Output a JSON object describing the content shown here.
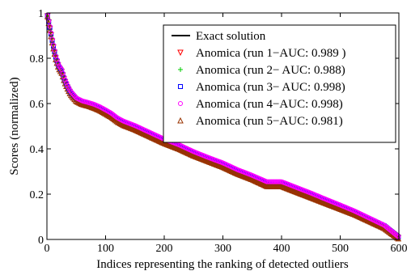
{
  "chart_data": {
    "type": "line",
    "title": "",
    "xlabel": "Indices representing the ranking of detected outliers",
    "ylabel": "Scores (normalized)",
    "xlim": [
      0,
      600
    ],
    "ylim": [
      0,
      1
    ],
    "xticks": [
      "0",
      "100",
      "200",
      "300",
      "400",
      "500",
      "600"
    ],
    "yticks": [
      "0",
      "0.2",
      "0.4",
      "0.6",
      "0.8",
      "1"
    ],
    "x": [
      0,
      5,
      10,
      15,
      20,
      25,
      30,
      35,
      40,
      50,
      60,
      70,
      80,
      90,
      100,
      110,
      120,
      130,
      150,
      175,
      200,
      225,
      250,
      275,
      300,
      325,
      350,
      375,
      400,
      425,
      450,
      475,
      500,
      525,
      550,
      575,
      600
    ],
    "legend_position": "top-right",
    "grid": false,
    "series": [
      {
        "name": "Exact solution",
        "style": "line",
        "color": "#000000",
        "values": [
          1.0,
          0.93,
          0.86,
          0.8,
          0.76,
          0.74,
          0.7,
          0.67,
          0.645,
          0.615,
          0.602,
          0.595,
          0.586,
          0.575,
          0.56,
          0.545,
          0.525,
          0.51,
          0.49,
          0.46,
          0.43,
          0.405,
          0.375,
          0.35,
          0.325,
          0.295,
          0.27,
          0.24,
          0.24,
          0.215,
          0.19,
          0.165,
          0.14,
          0.115,
          0.085,
          0.055,
          0.005
        ]
      },
      {
        "name": "Anomica (run 1−AUC: 0.989 )",
        "style": "triangle-down",
        "color": "#ff0000",
        "values": [
          1.0,
          0.93,
          0.86,
          0.8,
          0.76,
          0.74,
          0.7,
          0.67,
          0.645,
          0.615,
          0.602,
          0.595,
          0.586,
          0.575,
          0.56,
          0.545,
          0.525,
          0.51,
          0.49,
          0.46,
          0.43,
          0.405,
          0.375,
          0.35,
          0.325,
          0.295,
          0.27,
          0.24,
          0.24,
          0.215,
          0.19,
          0.165,
          0.14,
          0.115,
          0.085,
          0.055,
          0.005
        ]
      },
      {
        "name": "Anomica (run 2− AUC: 0.988)",
        "style": "plus",
        "color": "#00cc00",
        "values": [
          1.0,
          0.93,
          0.86,
          0.8,
          0.76,
          0.74,
          0.7,
          0.67,
          0.645,
          0.615,
          0.602,
          0.595,
          0.586,
          0.575,
          0.56,
          0.545,
          0.525,
          0.51,
          0.49,
          0.46,
          0.43,
          0.405,
          0.375,
          0.35,
          0.325,
          0.295,
          0.27,
          0.24,
          0.24,
          0.215,
          0.19,
          0.165,
          0.14,
          0.115,
          0.085,
          0.055,
          0.005
        ]
      },
      {
        "name": "Anomica (run 3− AUC: 0.998)",
        "style": "square",
        "color": "#0000ff",
        "values": [
          1.0,
          0.935,
          0.865,
          0.805,
          0.765,
          0.745,
          0.705,
          0.675,
          0.65,
          0.62,
          0.607,
          0.6,
          0.591,
          0.58,
          0.565,
          0.55,
          0.53,
          0.515,
          0.495,
          0.465,
          0.435,
          0.41,
          0.38,
          0.355,
          0.33,
          0.3,
          0.275,
          0.247,
          0.247,
          0.222,
          0.197,
          0.172,
          0.147,
          0.12,
          0.09,
          0.06,
          0.008
        ]
      },
      {
        "name": "Anomica (run 4−AUC: 0.998)",
        "style": "circle",
        "color": "#ff00ff",
        "values": [
          1.0,
          0.94,
          0.87,
          0.81,
          0.77,
          0.75,
          0.71,
          0.68,
          0.655,
          0.625,
          0.612,
          0.605,
          0.597,
          0.586,
          0.572,
          0.557,
          0.537,
          0.523,
          0.503,
          0.473,
          0.443,
          0.418,
          0.388,
          0.362,
          0.338,
          0.308,
          0.283,
          0.255,
          0.255,
          0.23,
          0.205,
          0.178,
          0.152,
          0.125,
          0.094,
          0.063,
          0.01
        ]
      },
      {
        "name": "Anomica (run 5−AUC: 0.981)",
        "style": "triangle-up",
        "color": "#993300",
        "values": [
          1.0,
          0.925,
          0.855,
          0.795,
          0.755,
          0.735,
          0.695,
          0.665,
          0.64,
          0.61,
          0.597,
          0.59,
          0.581,
          0.57,
          0.555,
          0.54,
          0.52,
          0.505,
          0.485,
          0.455,
          0.425,
          0.4,
          0.37,
          0.345,
          0.32,
          0.29,
          0.265,
          0.235,
          0.235,
          0.21,
          0.185,
          0.16,
          0.135,
          0.11,
          0.08,
          0.05,
          0.002
        ]
      }
    ]
  }
}
